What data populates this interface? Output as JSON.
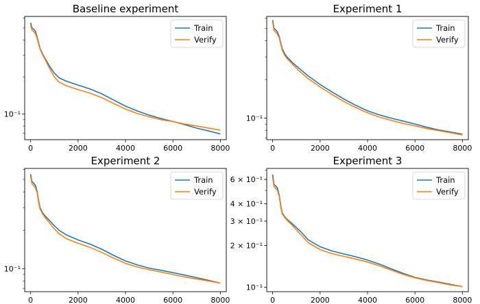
{
  "colors": {
    "train": "#1f77b4",
    "verify": "#ff7f0e"
  },
  "chart_data": [
    {
      "type": "line",
      "title": "Baseline experiment",
      "yscale": "log",
      "xlim": [
        -250,
        8250
      ],
      "ylim": [
        0.062,
        0.62
      ],
      "x_ticks": [
        0,
        2000,
        4000,
        6000,
        8000
      ],
      "y_ticks": [
        {
          "value": 0.1,
          "label": "10⁻¹"
        }
      ],
      "legend": "top-right",
      "series": [
        {
          "name": "Train",
          "color": "#1f77b4",
          "x": [
            0,
            60,
            120,
            200,
            280,
            350,
            400,
            500,
            600,
            800,
            1000,
            1200,
            1500,
            2000,
            2500,
            3000,
            3500,
            4000,
            4500,
            5000,
            5500,
            6000,
            6500,
            7000,
            7500,
            8000
          ],
          "y": [
            0.55,
            0.5,
            0.49,
            0.47,
            0.42,
            0.37,
            0.34,
            0.31,
            0.285,
            0.245,
            0.215,
            0.197,
            0.185,
            0.172,
            0.16,
            0.146,
            0.13,
            0.116,
            0.106,
            0.098,
            0.092,
            0.087,
            0.082,
            0.077,
            0.073,
            0.069
          ]
        },
        {
          "name": "Verify",
          "color": "#ff7f0e",
          "x": [
            0,
            60,
            120,
            200,
            280,
            350,
            400,
            500,
            600,
            800,
            1000,
            1200,
            1500,
            2000,
            2500,
            3000,
            3500,
            4000,
            4500,
            5000,
            5500,
            6000,
            6500,
            7000,
            7500,
            8000
          ],
          "y": [
            0.53,
            0.48,
            0.47,
            0.45,
            0.41,
            0.36,
            0.335,
            0.305,
            0.28,
            0.235,
            0.2,
            0.182,
            0.17,
            0.158,
            0.148,
            0.136,
            0.122,
            0.11,
            0.101,
            0.095,
            0.09,
            0.087,
            0.083,
            0.08,
            0.077,
            0.074
          ]
        }
      ]
    },
    {
      "type": "line",
      "title": "Experiment 1",
      "yscale": "log",
      "xlim": [
        -250,
        8250
      ],
      "ylim": [
        0.068,
        0.62
      ],
      "x_ticks": [
        0,
        2000,
        4000,
        6000,
        8000
      ],
      "y_ticks": [
        {
          "value": 0.1,
          "label": "10⁻¹"
        }
      ],
      "legend": "top-right",
      "series": [
        {
          "name": "Train",
          "color": "#1f77b4",
          "x": [
            0,
            60,
            120,
            200,
            280,
            350,
            400,
            500,
            600,
            800,
            1000,
            1200,
            1500,
            2000,
            2500,
            3000,
            3500,
            4000,
            4500,
            5000,
            5500,
            6000,
            6500,
            7000,
            7500,
            8000
          ],
          "y": [
            0.58,
            0.5,
            0.49,
            0.47,
            0.43,
            0.38,
            0.35,
            0.32,
            0.3,
            0.275,
            0.255,
            0.237,
            0.213,
            0.183,
            0.16,
            0.141,
            0.126,
            0.114,
            0.106,
            0.1,
            0.095,
            0.09,
            0.085,
            0.081,
            0.078,
            0.075
          ]
        },
        {
          "name": "Verify",
          "color": "#ff7f0e",
          "x": [
            0,
            60,
            120,
            200,
            280,
            350,
            400,
            500,
            600,
            800,
            1000,
            1200,
            1500,
            2000,
            2500,
            3000,
            3500,
            4000,
            4500,
            5000,
            5500,
            6000,
            6500,
            7000,
            7500,
            8000
          ],
          "y": [
            0.56,
            0.48,
            0.47,
            0.45,
            0.42,
            0.37,
            0.34,
            0.31,
            0.292,
            0.268,
            0.245,
            0.226,
            0.203,
            0.175,
            0.153,
            0.135,
            0.121,
            0.11,
            0.102,
            0.096,
            0.091,
            0.087,
            0.083,
            0.08,
            0.077,
            0.074
          ]
        }
      ]
    },
    {
      "type": "line",
      "title": "Experiment 2",
      "yscale": "log",
      "xlim": [
        -250,
        8250
      ],
      "ylim": [
        0.066,
        0.61
      ],
      "x_ticks": [
        0,
        2000,
        4000,
        6000,
        8000
      ],
      "y_ticks": [
        {
          "value": 0.1,
          "label": "10⁻¹"
        }
      ],
      "legend": "top-right",
      "series": [
        {
          "name": "Train",
          "color": "#1f77b4",
          "x": [
            0,
            60,
            120,
            200,
            280,
            350,
            400,
            500,
            600,
            800,
            1000,
            1200,
            1500,
            2000,
            2500,
            3000,
            3500,
            4000,
            4500,
            5000,
            5500,
            6000,
            6500,
            7000,
            7500,
            8000
          ],
          "y": [
            0.55,
            0.48,
            0.47,
            0.45,
            0.4,
            0.33,
            0.3,
            0.275,
            0.26,
            0.238,
            0.217,
            0.2,
            0.184,
            0.168,
            0.156,
            0.142,
            0.127,
            0.115,
            0.107,
            0.101,
            0.097,
            0.093,
            0.089,
            0.085,
            0.081,
            0.077
          ]
        },
        {
          "name": "Verify",
          "color": "#ff7f0e",
          "x": [
            0,
            60,
            120,
            200,
            280,
            350,
            400,
            500,
            600,
            800,
            1000,
            1200,
            1500,
            2000,
            2500,
            3000,
            3500,
            4000,
            4500,
            5000,
            5500,
            6000,
            6500,
            7000,
            7500,
            8000
          ],
          "y": [
            0.53,
            0.46,
            0.45,
            0.43,
            0.39,
            0.32,
            0.293,
            0.27,
            0.253,
            0.228,
            0.205,
            0.188,
            0.172,
            0.158,
            0.147,
            0.134,
            0.121,
            0.11,
            0.103,
            0.098,
            0.094,
            0.09,
            0.086,
            0.083,
            0.08,
            0.077
          ]
        }
      ]
    },
    {
      "type": "line",
      "title": "Experiment 3",
      "yscale": "log",
      "xlim": [
        -250,
        8250
      ],
      "ylim": [
        0.093,
        0.72
      ],
      "x_ticks": [
        0,
        2000,
        4000,
        6000,
        8000
      ],
      "y_ticks": [
        {
          "value": 0.1,
          "label": "10⁻¹"
        },
        {
          "value": 0.2,
          "label": "2 × 10⁻¹"
        },
        {
          "value": 0.3,
          "label": "3 × 10⁻¹"
        },
        {
          "value": 0.4,
          "label": "4 × 10⁻¹"
        },
        {
          "value": 0.6,
          "label": "6 × 10⁻¹"
        }
      ],
      "legend": "top-right",
      "series": [
        {
          "name": "Train",
          "color": "#1f77b4",
          "x": [
            0,
            60,
            120,
            200,
            280,
            350,
            400,
            500,
            600,
            800,
            1000,
            1200,
            1500,
            2000,
            2500,
            3000,
            3500,
            4000,
            4500,
            5000,
            5500,
            6000,
            6500,
            7000,
            7500,
            8000
          ],
          "y": [
            0.65,
            0.55,
            0.54,
            0.52,
            0.46,
            0.38,
            0.345,
            0.325,
            0.31,
            0.29,
            0.27,
            0.25,
            0.22,
            0.196,
            0.183,
            0.174,
            0.166,
            0.157,
            0.147,
            0.136,
            0.126,
            0.118,
            0.113,
            0.109,
            0.105,
            0.101
          ]
        },
        {
          "name": "Verify",
          "color": "#ff7f0e",
          "x": [
            0,
            60,
            120,
            200,
            280,
            350,
            400,
            500,
            600,
            800,
            1000,
            1200,
            1500,
            2000,
            2500,
            3000,
            3500,
            4000,
            4500,
            5000,
            5500,
            6000,
            6500,
            7000,
            7500,
            8000
          ],
          "y": [
            0.62,
            0.53,
            0.52,
            0.5,
            0.45,
            0.37,
            0.34,
            0.32,
            0.305,
            0.283,
            0.26,
            0.238,
            0.21,
            0.187,
            0.175,
            0.167,
            0.16,
            0.152,
            0.143,
            0.133,
            0.124,
            0.117,
            0.112,
            0.108,
            0.104,
            0.101
          ]
        }
      ]
    }
  ]
}
